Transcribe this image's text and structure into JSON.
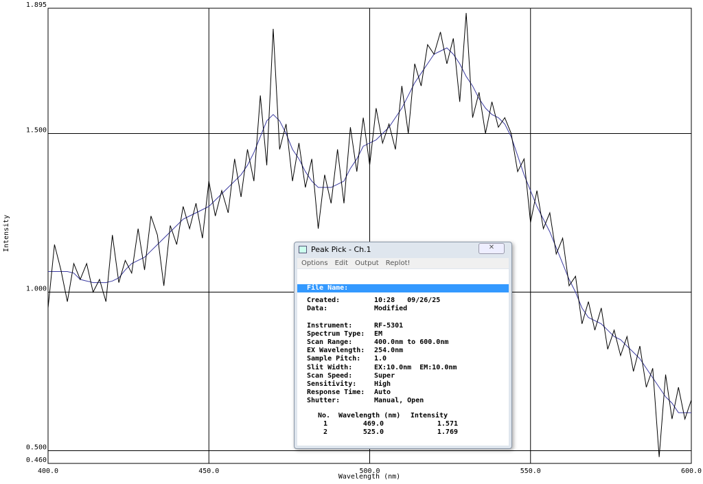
{
  "chart_data": {
    "type": "line",
    "xlabel": "Wavelength (nm)",
    "ylabel": "Intensity",
    "x": [
      400,
      402,
      404,
      406,
      408,
      410,
      412,
      414,
      416,
      418,
      420,
      422,
      424,
      426,
      428,
      430,
      432,
      434,
      436,
      438,
      440,
      442,
      444,
      446,
      448,
      450,
      452,
      454,
      456,
      458,
      460,
      462,
      464,
      466,
      468,
      470,
      472,
      474,
      476,
      478,
      480,
      482,
      484,
      486,
      488,
      490,
      492,
      494,
      496,
      498,
      500,
      502,
      504,
      506,
      508,
      510,
      512,
      514,
      516,
      518,
      520,
      522,
      524,
      526,
      528,
      530,
      532,
      534,
      536,
      538,
      540,
      542,
      544,
      546,
      548,
      550,
      552,
      554,
      556,
      558,
      560,
      562,
      564,
      566,
      568,
      570,
      572,
      574,
      576,
      578,
      580,
      582,
      584,
      586,
      588,
      590,
      592,
      594,
      596,
      598,
      600
    ],
    "series": [
      {
        "color": "#000000",
        "values": [
          0.95,
          1.15,
          1.07,
          0.97,
          1.09,
          1.04,
          1.09,
          1.0,
          1.04,
          0.97,
          1.18,
          1.03,
          1.1,
          1.06,
          1.2,
          1.07,
          1.24,
          1.18,
          1.02,
          1.21,
          1.15,
          1.27,
          1.2,
          1.28,
          1.17,
          1.35,
          1.24,
          1.32,
          1.25,
          1.42,
          1.3,
          1.45,
          1.35,
          1.62,
          1.4,
          1.83,
          1.45,
          1.53,
          1.35,
          1.47,
          1.33,
          1.42,
          1.2,
          1.37,
          1.28,
          1.45,
          1.28,
          1.52,
          1.38,
          1.55,
          1.4,
          1.58,
          1.47,
          1.53,
          1.45,
          1.65,
          1.5,
          1.72,
          1.65,
          1.78,
          1.75,
          1.82,
          1.72,
          1.8,
          1.6,
          1.88,
          1.55,
          1.63,
          1.5,
          1.6,
          1.52,
          1.55,
          1.5,
          1.38,
          1.42,
          1.22,
          1.32,
          1.2,
          1.25,
          1.12,
          1.17,
          1.02,
          1.05,
          0.9,
          0.97,
          0.88,
          0.95,
          0.82,
          0.88,
          0.8,
          0.86,
          0.75,
          0.83,
          0.7,
          0.76,
          0.48,
          0.74,
          0.6,
          0.7,
          0.6,
          0.66
        ]
      },
      {
        "color": "#3a3aa0",
        "values": [
          1.065,
          1.065,
          1.065,
          1.065,
          1.06,
          1.04,
          1.035,
          1.03,
          1.03,
          1.03,
          1.035,
          1.045,
          1.07,
          1.09,
          1.1,
          1.11,
          1.13,
          1.15,
          1.17,
          1.19,
          1.21,
          1.23,
          1.24,
          1.25,
          1.26,
          1.27,
          1.29,
          1.31,
          1.33,
          1.35,
          1.37,
          1.4,
          1.44,
          1.49,
          1.54,
          1.56,
          1.54,
          1.5,
          1.45,
          1.42,
          1.38,
          1.35,
          1.33,
          1.33,
          1.33,
          1.34,
          1.35,
          1.39,
          1.42,
          1.46,
          1.47,
          1.48,
          1.5,
          1.52,
          1.55,
          1.58,
          1.62,
          1.66,
          1.69,
          1.72,
          1.75,
          1.76,
          1.77,
          1.75,
          1.72,
          1.68,
          1.65,
          1.61,
          1.58,
          1.56,
          1.55,
          1.53,
          1.49,
          1.43,
          1.37,
          1.32,
          1.27,
          1.23,
          1.19,
          1.14,
          1.09,
          1.04,
          1.0,
          0.95,
          0.92,
          0.91,
          0.9,
          0.88,
          0.86,
          0.85,
          0.83,
          0.81,
          0.79,
          0.76,
          0.73,
          0.7,
          0.67,
          0.65,
          0.62,
          0.62,
          0.62
        ]
      }
    ],
    "xlim": [
      400,
      600
    ],
    "xticks": [
      {
        "value": 400,
        "label": "400.0"
      },
      {
        "value": 450,
        "label": "450.0"
      },
      {
        "value": 500,
        "label": "500.0"
      },
      {
        "value": 550,
        "label": "550.0"
      },
      {
        "value": 600,
        "label": "600.0"
      }
    ],
    "ylim": [
      0.46,
      1.895
    ],
    "yticks": [
      {
        "value": 0.46,
        "label": "0.460"
      },
      {
        "value": 0.5,
        "label": "0.500"
      },
      {
        "value": 1.0,
        "label": "1.000"
      },
      {
        "value": 1.5,
        "label": "1.500"
      },
      {
        "value": 1.895,
        "label": "1.895"
      }
    ],
    "grid": true
  },
  "dialog": {
    "title": "Peak Pick - Ch.1",
    "menu": [
      "Options",
      "Edit",
      "Output",
      "Replot!"
    ],
    "file_name": "File Name:",
    "groups": [
      [
        [
          "Created:",
          "10:28   09/26/25"
        ],
        [
          "Data:",
          "Modified"
        ]
      ],
      [
        [
          "Instrument:",
          "RF-5301"
        ],
        [
          "Spectrum Type:",
          "EM"
        ],
        [
          "Scan Range:",
          "400.0nm to 600.0nm"
        ],
        [
          "EX Wavelength:",
          "254.0nm"
        ],
        [
          "Sample Pitch:",
          "1.0"
        ],
        [
          "Slit Width:",
          "EX:10.0nm  EM:10.0nm"
        ],
        [
          "Scan Speed:",
          "Super"
        ],
        [
          "Sensitivity:",
          "High"
        ],
        [
          "Response Time:",
          "Auto"
        ],
        [
          "Shutter:",
          "Manual, Open"
        ]
      ]
    ],
    "peaks": {
      "headers": [
        "No.",
        "Wavelength (nm)",
        "Intensity"
      ],
      "rows": [
        [
          "1",
          "469.0",
          "1.571"
        ],
        [
          "2",
          "525.0",
          "1.769"
        ]
      ]
    }
  }
}
